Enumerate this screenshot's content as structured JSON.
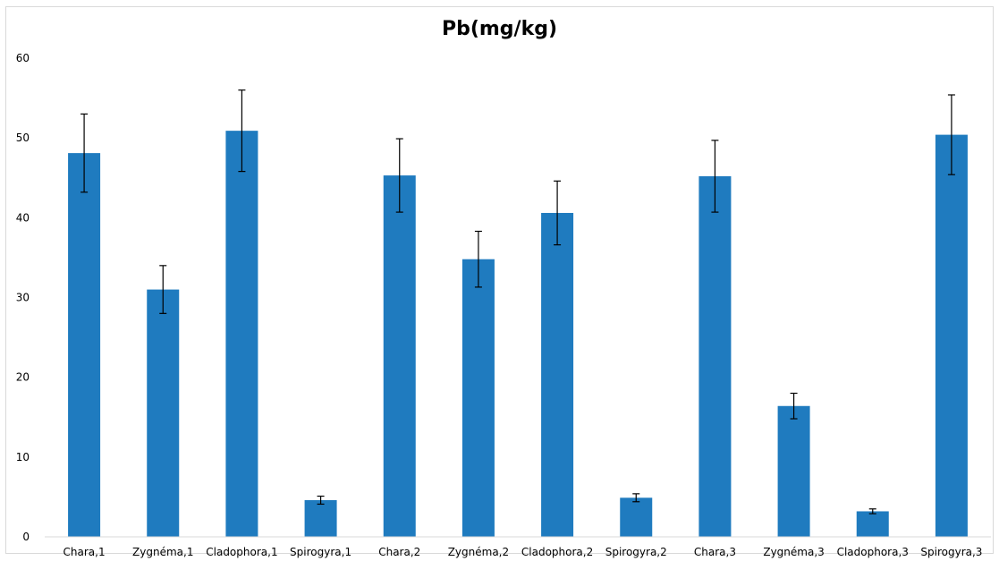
{
  "chart_data": {
    "type": "bar",
    "title": "Pb(mg/kg)",
    "xlabel": "",
    "ylabel": "",
    "ylim": [
      0,
      60
    ],
    "yticks": [
      0,
      10,
      20,
      30,
      40,
      50,
      60
    ],
    "grid": false,
    "legend": "none",
    "categories": [
      "Chara,1",
      "Zygnéma,1",
      "Cladophora,1",
      "Spirogyra,1",
      "Chara,2",
      "Zygnéma,2",
      "Cladophora,2",
      "Spirogyra,2",
      "Chara,3",
      "Zygnéma,3",
      "Cladophora,3",
      "Spirogyra,3"
    ],
    "series": [
      {
        "values": [
          48.1,
          31.0,
          50.9,
          4.6,
          45.3,
          34.8,
          40.6,
          4.9,
          45.2,
          16.4,
          3.2,
          50.4
        ],
        "errors": [
          4.9,
          3.0,
          5.1,
          0.5,
          4.6,
          3.5,
          4.0,
          0.5,
          4.5,
          1.6,
          0.3,
          5.0
        ],
        "color": "#1f7bbf"
      }
    ]
  }
}
